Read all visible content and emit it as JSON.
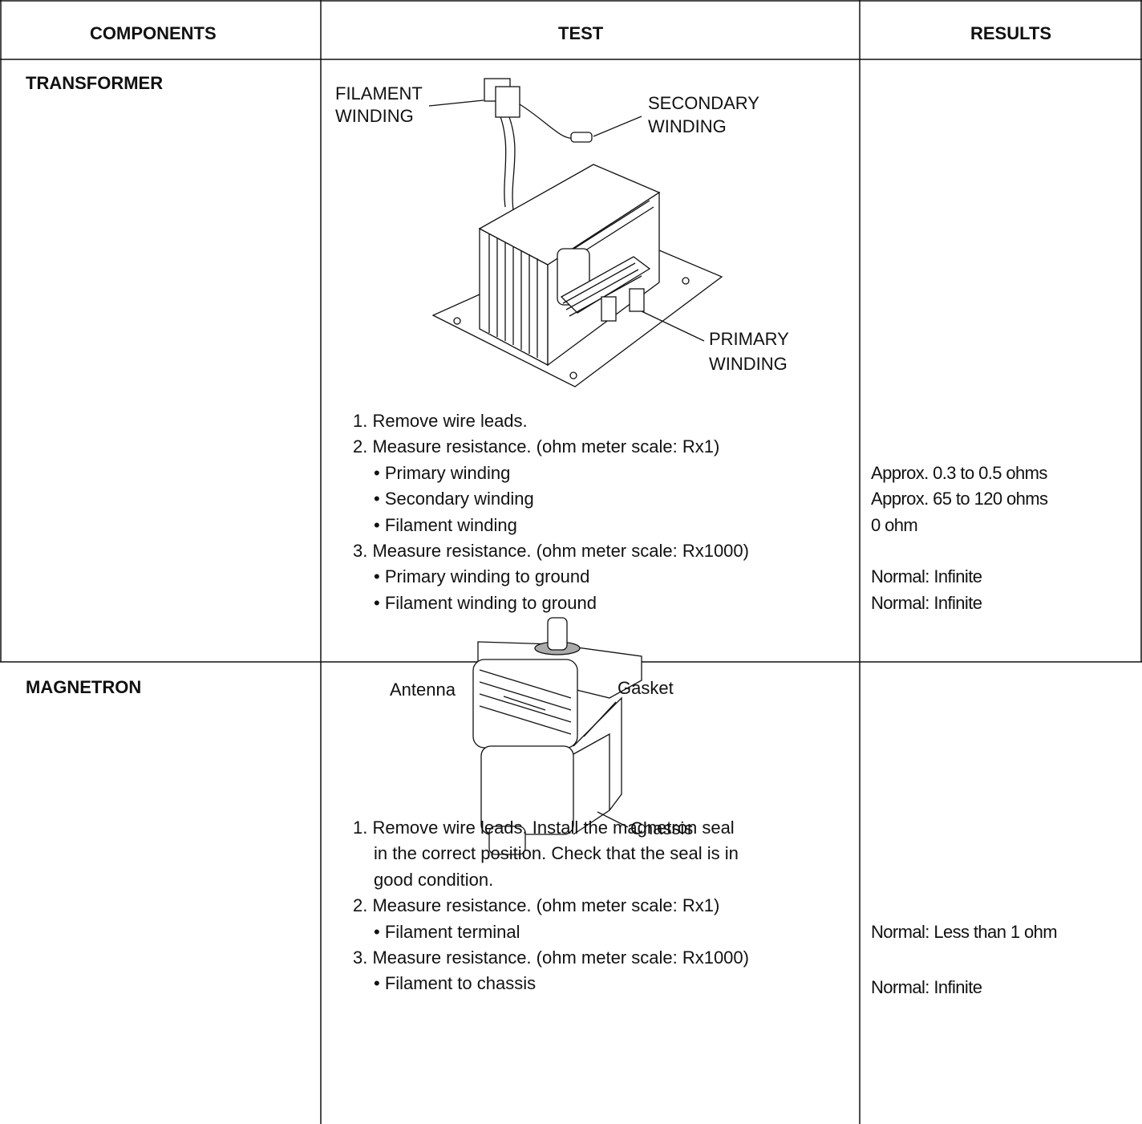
{
  "table": {
    "header": [
      "COMPONENTS",
      "TEST",
      "RESULTS"
    ],
    "rows": [
      {
        "component": "TRANSFORMER",
        "diagram_labels": [
          [
            "FILAMENT",
            "WINDING"
          ],
          [
            "SECONDARY",
            "WINDING"
          ],
          [
            "PRIMARY",
            "WINDING"
          ]
        ],
        "steps": [
          {
            "text": "1. Remove wire leads."
          },
          {
            "text": "2. Measure resistance. (ohm meter scale: Rx1)"
          },
          {
            "text": "• Primary winding",
            "result": "Approx. 0.3 to 0.5 ohms"
          },
          {
            "text": "• Secondary winding",
            "result": "Approx. 65 to 120 ohms"
          },
          {
            "text": "• Filament winding",
            "result": "0 ohm"
          },
          {
            "text": "3. Measure resistance. (ohm meter scale: Rx1000)"
          },
          {
            "text": "• Primary winding to ground",
            "result": "Normal: Infinite"
          },
          {
            "text": "• Filament winding to ground",
            "result": "Normal: Infinite"
          }
        ]
      },
      {
        "component": "MAGNETRON",
        "diagram_labels": [
          [
            "Antenna"
          ],
          [
            "Gasket"
          ],
          [
            "Chassis"
          ]
        ],
        "steps": [
          {
            "text": "1. Remove wire leads. Install the magnetron seal"
          },
          {
            "text": "in the correct position. Check that the seal is in"
          },
          {
            "text": "good condition."
          },
          {
            "text": "2. Measure resistance. (ohm meter scale: Rx1)"
          },
          {
            "text": "• Filament terminal",
            "result": "Normal: Less than 1 ohm"
          },
          {
            "text": "3. Measure resistance. (ohm meter scale: Rx1000)"
          },
          {
            "text": "• Filament to chassis",
            "result": "Normal: Infinite"
          }
        ]
      }
    ]
  }
}
